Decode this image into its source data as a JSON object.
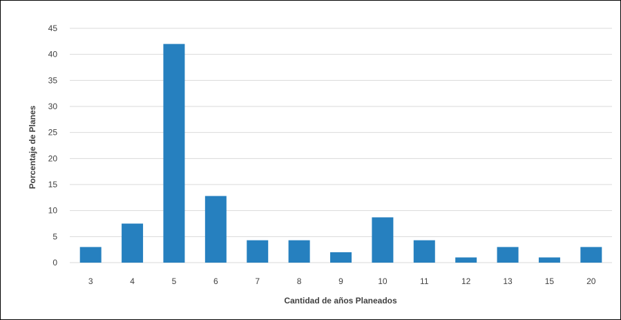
{
  "chart_data": {
    "type": "bar",
    "categories": [
      "3",
      "4",
      "5",
      "6",
      "7",
      "8",
      "9",
      "10",
      "11",
      "12",
      "13",
      "15",
      "20"
    ],
    "values": [
      3,
      7.5,
      42,
      12.8,
      4.3,
      4.3,
      2,
      8.7,
      4.3,
      1,
      3,
      1,
      3
    ],
    "title": "",
    "xlabel": "Cantidad de años Planeados",
    "ylabel": "Porcentaje de Planes",
    "ylim": [
      0,
      45
    ],
    "yticks": [
      0,
      5,
      10,
      15,
      20,
      25,
      30,
      35,
      40,
      45
    ],
    "grid": true,
    "legend": "none",
    "colors": {
      "bar": "#2680BF",
      "grid": "#D9D9D9",
      "text": "#404040"
    }
  }
}
